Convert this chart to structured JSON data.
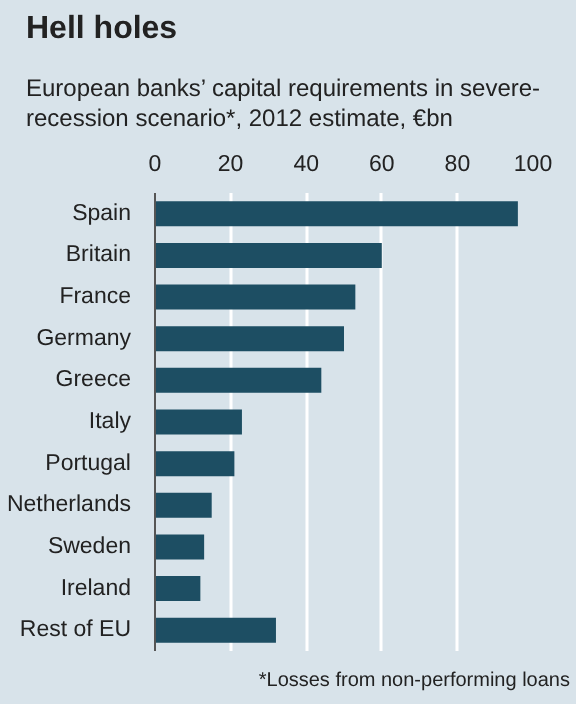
{
  "chart_data": {
    "type": "bar",
    "orientation": "horizontal",
    "title": "Hell holes",
    "subtitle": "European banks’ capital requirements in severe-recession scenario*, 2012 estimate, €bn",
    "categories": [
      "Spain",
      "Britain",
      "France",
      "Germany",
      "Greece",
      "Italy",
      "Portugal",
      "Netherlands",
      "Sweden",
      "Ireland",
      "Rest of EU"
    ],
    "values": [
      96,
      60,
      53,
      50,
      44,
      23,
      21,
      15,
      13,
      12,
      32
    ],
    "color": "#1d4e63",
    "xlim": [
      0,
      100
    ],
    "xticks": [
      0,
      20,
      40,
      60,
      80,
      100
    ],
    "grid": "x",
    "annotations": [
      "*Losses from non-performing loans"
    ]
  }
}
